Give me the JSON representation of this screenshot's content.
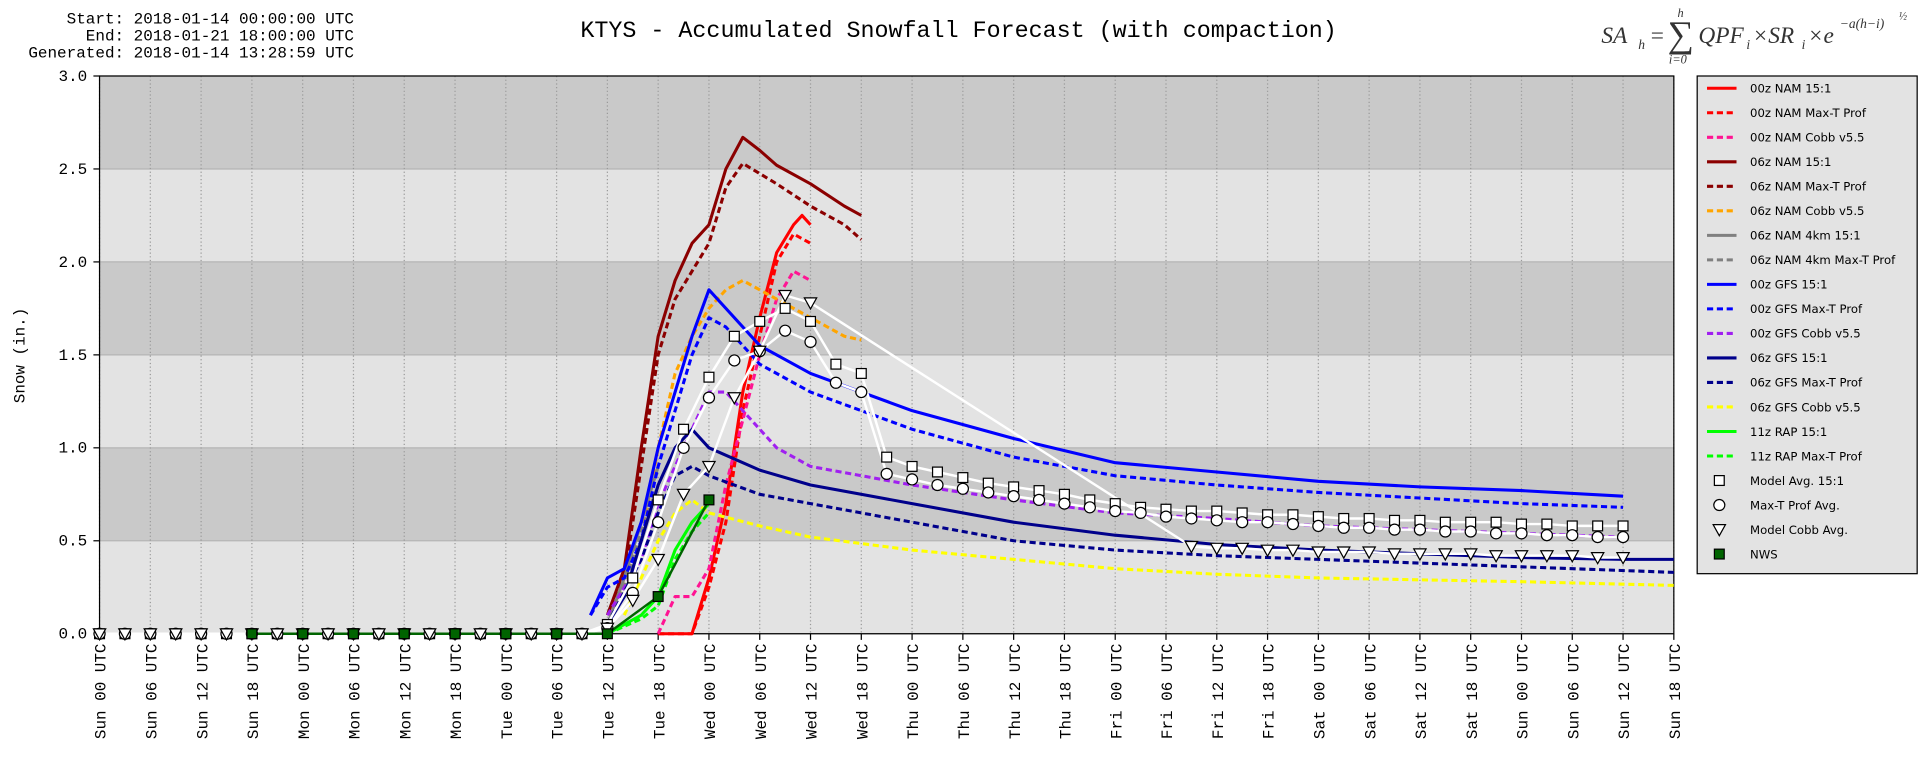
{
  "header": {
    "start": "Start: 2018-01-14 00:00:00 UTC",
    "end": "End: 2018-01-21 18:00:00 UTC",
    "generated": "Generated: 2018-01-14 13:28:59 UTC"
  },
  "formula": {
    "lhs": "SA",
    "lhs_sub": "h",
    "eq": "=",
    "sum": "∑",
    "sum_top": "h",
    "sum_bottom": "i=0",
    "body": "QPF",
    "sub1": "i",
    "times_sr": "×SR",
    "sub2": "i",
    "times_e": "×e",
    "exponent": "−a(h−i)",
    "exp_power": "½"
  },
  "chart_data": {
    "type": "line",
    "title": "KTYS - Accumulated Snowfall Forecast (with compaction)",
    "y_label": "Snow (in.)",
    "xlim": [
      0,
      186
    ],
    "ylim": [
      0,
      3
    ],
    "grid": true,
    "legend": "right",
    "yticks": [
      {
        "value": 0,
        "label": "0.0"
      },
      {
        "value": 0.5,
        "label": "0.5"
      },
      {
        "value": 1,
        "label": "1.0"
      },
      {
        "value": 1.5,
        "label": "1.5"
      },
      {
        "value": 2,
        "label": "2.0"
      },
      {
        "value": 2.5,
        "label": "2.5"
      },
      {
        "value": 3,
        "label": "3.0"
      }
    ],
    "xticks": [
      {
        "value": 0,
        "label": "Sun 00 UTC"
      },
      {
        "value": 6,
        "label": "Sun 06 UTC"
      },
      {
        "value": 12,
        "label": "Sun 12 UTC"
      },
      {
        "value": 18,
        "label": "Sun 18 UTC"
      },
      {
        "value": 24,
        "label": "Mon 00 UTC"
      },
      {
        "value": 30,
        "label": "Mon 06 UTC"
      },
      {
        "value": 36,
        "label": "Mon 12 UTC"
      },
      {
        "value": 42,
        "label": "Mon 18 UTC"
      },
      {
        "value": 48,
        "label": "Tue 00 UTC"
      },
      {
        "value": 54,
        "label": "Tue 06 UTC"
      },
      {
        "value": 60,
        "label": "Tue 12 UTC"
      },
      {
        "value": 66,
        "label": "Tue 18 UTC"
      },
      {
        "value": 72,
        "label": "Wed 00 UTC"
      },
      {
        "value": 78,
        "label": "Wed 06 UTC"
      },
      {
        "value": 84,
        "label": "Wed 12 UTC"
      },
      {
        "value": 90,
        "label": "Wed 18 UTC"
      },
      {
        "value": 96,
        "label": "Thu 00 UTC"
      },
      {
        "value": 102,
        "label": "Thu 06 UTC"
      },
      {
        "value": 108,
        "label": "Thu 12 UTC"
      },
      {
        "value": 114,
        "label": "Thu 18 UTC"
      },
      {
        "value": 120,
        "label": "Fri 00 UTC"
      },
      {
        "value": 126,
        "label": "Fri 06 UTC"
      },
      {
        "value": 132,
        "label": "Fri 12 UTC"
      },
      {
        "value": 138,
        "label": "Fri 18 UTC"
      },
      {
        "value": 144,
        "label": "Sat 00 UTC"
      },
      {
        "value": 150,
        "label": "Sat 06 UTC"
      },
      {
        "value": 156,
        "label": "Sat 12 UTC"
      },
      {
        "value": 162,
        "label": "Sat 18 UTC"
      },
      {
        "value": 168,
        "label": "Sun 00 UTC"
      },
      {
        "value": 174,
        "label": "Sun 06 UTC"
      },
      {
        "value": 180,
        "label": "Sun 12 UTC"
      },
      {
        "value": 186,
        "label": "Sun 18 UTC"
      }
    ],
    "series": [
      {
        "name": "00z NAM 15:1",
        "color": "#ff0000",
        "dash": false,
        "x": [
          66,
          70,
          72,
          74,
          76,
          78,
          80,
          82,
          83,
          84
        ],
        "values": [
          0,
          0,
          0.3,
          0.7,
          1.3,
          1.7,
          2.05,
          2.2,
          2.25,
          2.2
        ]
      },
      {
        "name": "00z NAM Max-T Prof",
        "color": "#ff0000",
        "dash": true,
        "x": [
          66,
          70,
          72,
          74,
          76,
          78,
          80,
          82,
          84
        ],
        "values": [
          0,
          0,
          0.25,
          0.6,
          1.2,
          1.6,
          2.0,
          2.15,
          2.1
        ]
      },
      {
        "name": "00z NAM Cobb v5.5",
        "color": "#ff1493",
        "dash": true,
        "x": [
          66,
          68,
          70,
          72,
          74,
          76,
          78,
          80,
          82,
          84
        ],
        "values": [
          0,
          0.2,
          0.2,
          0.35,
          0.8,
          1.15,
          1.5,
          1.8,
          1.95,
          1.9
        ]
      },
      {
        "name": "06z NAM 15:1",
        "color": "#8b0000",
        "dash": false,
        "x": [
          60,
          62,
          64,
          66,
          68,
          70,
          72,
          74,
          76,
          78,
          80,
          84,
          88,
          90
        ],
        "values": [
          0.1,
          0.35,
          1.0,
          1.6,
          1.9,
          2.1,
          2.2,
          2.5,
          2.67,
          2.6,
          2.52,
          2.42,
          2.3,
          2.25
        ]
      },
      {
        "name": "06z NAM Max-T Prof",
        "color": "#8b0000",
        "dash": true,
        "x": [
          60,
          62,
          64,
          66,
          68,
          70,
          72,
          74,
          76,
          80,
          84,
          88,
          90
        ],
        "values": [
          0.1,
          0.3,
          0.9,
          1.5,
          1.8,
          1.95,
          2.1,
          2.4,
          2.53,
          2.42,
          2.3,
          2.2,
          2.12
        ]
      },
      {
        "name": "06z NAM Cobb v5.5",
        "color": "#ffa500",
        "dash": true,
        "x": [
          60,
          64,
          66,
          68,
          70,
          72,
          74,
          76,
          78,
          80,
          84,
          88,
          90
        ],
        "values": [
          0.05,
          0.5,
          1.0,
          1.4,
          1.6,
          1.75,
          1.85,
          1.9,
          1.85,
          1.8,
          1.7,
          1.6,
          1.58
        ]
      },
      {
        "name": "06z NAM 4km 15:1",
        "color": "#808080",
        "dash": false,
        "x": [
          60,
          62,
          64,
          66
        ],
        "values": [
          0.05,
          0.3,
          0.6,
          0.9
        ]
      },
      {
        "name": "06z NAM 4km Max-T Prof",
        "color": "#808080",
        "dash": true,
        "x": [
          60,
          62,
          64,
          66
        ],
        "values": [
          0.05,
          0.25,
          0.55,
          0.8
        ]
      },
      {
        "name": "00z GFS 15:1",
        "color": "#0000ff",
        "dash": false,
        "x": [
          58,
          60,
          62,
          64,
          66,
          68,
          70,
          72,
          74,
          78,
          84,
          90,
          96,
          108,
          120,
          132,
          144,
          156,
          168,
          180
        ],
        "values": [
          0.1,
          0.3,
          0.35,
          0.6,
          1.0,
          1.3,
          1.6,
          1.85,
          1.75,
          1.55,
          1.4,
          1.3,
          1.2,
          1.05,
          0.92,
          0.87,
          0.82,
          0.79,
          0.77,
          0.74
        ]
      },
      {
        "name": "00z GFS Max-T Prof",
        "color": "#0000ff",
        "dash": true,
        "x": [
          58,
          60,
          62,
          64,
          66,
          68,
          70,
          72,
          74,
          78,
          84,
          90,
          96,
          108,
          120,
          132,
          144,
          156,
          168,
          180
        ],
        "values": [
          0.1,
          0.25,
          0.3,
          0.5,
          0.9,
          1.2,
          1.5,
          1.7,
          1.65,
          1.45,
          1.3,
          1.2,
          1.1,
          0.95,
          0.85,
          0.8,
          0.76,
          0.73,
          0.7,
          0.68
        ]
      },
      {
        "name": "00z GFS Cobb v5.5",
        "color": "#a020f0",
        "dash": true,
        "x": [
          60,
          64,
          66,
          68,
          70,
          72,
          74,
          76,
          80,
          84,
          96,
          108,
          120,
          132,
          144,
          156,
          168,
          180
        ],
        "values": [
          0.1,
          0.4,
          0.7,
          0.9,
          1.1,
          1.3,
          1.3,
          1.2,
          1.0,
          0.9,
          0.8,
          0.72,
          0.65,
          0.62,
          0.58,
          0.56,
          0.54,
          0.52
        ]
      },
      {
        "name": "06z GFS 15:1",
        "color": "#00008b",
        "dash": false,
        "x": [
          60,
          62,
          64,
          66,
          68,
          70,
          72,
          78,
          84,
          96,
          108,
          120,
          132,
          144,
          156,
          168,
          180,
          186
        ],
        "values": [
          0.05,
          0.2,
          0.5,
          0.8,
          1.0,
          1.1,
          1.0,
          0.88,
          0.8,
          0.7,
          0.6,
          0.53,
          0.48,
          0.45,
          0.43,
          0.41,
          0.4,
          0.4
        ]
      },
      {
        "name": "06z GFS Max-T Prof",
        "color": "#00008b",
        "dash": true,
        "x": [
          60,
          64,
          66,
          68,
          70,
          72,
          78,
          84,
          96,
          108,
          120,
          132,
          144,
          156,
          168,
          186
        ],
        "values": [
          0.05,
          0.4,
          0.65,
          0.85,
          0.9,
          0.85,
          0.75,
          0.7,
          0.6,
          0.5,
          0.45,
          0.42,
          0.4,
          0.38,
          0.36,
          0.33
        ]
      },
      {
        "name": "06z GFS Cobb v5.5",
        "color": "#ffff00",
        "dash": true,
        "x": [
          62,
          64,
          66,
          68,
          70,
          72,
          78,
          84,
          96,
          108,
          120,
          132,
          144,
          156,
          168,
          186
        ],
        "values": [
          0.1,
          0.3,
          0.5,
          0.65,
          0.72,
          0.65,
          0.58,
          0.52,
          0.45,
          0.4,
          0.35,
          0.32,
          0.3,
          0.29,
          0.28,
          0.26
        ]
      },
      {
        "name": "11z RAP 15:1",
        "color": "#00ff00",
        "dash": false,
        "x": [
          60,
          62,
          64,
          66,
          68,
          70,
          72
        ],
        "values": [
          0,
          0.05,
          0.1,
          0.2,
          0.45,
          0.6,
          0.7
        ]
      },
      {
        "name": "11z RAP Max-T Prof",
        "color": "#00ff00",
        "dash": true,
        "x": [
          60,
          64,
          66,
          68,
          70,
          72
        ],
        "values": [
          0,
          0.08,
          0.15,
          0.4,
          0.55,
          0.65
        ]
      },
      {
        "name": "Model Avg. 15:1",
        "color": "#ffffff",
        "dash": false,
        "marker": "square",
        "x": [
          0,
          3,
          6,
          9,
          12,
          15,
          18,
          21,
          24,
          27,
          30,
          33,
          36,
          39,
          42,
          45,
          48,
          51,
          54,
          57,
          60,
          63,
          66,
          69,
          72,
          75,
          78,
          81,
          84,
          87,
          90,
          93,
          96,
          99,
          102,
          105,
          108,
          111,
          114,
          117,
          120,
          123,
          126,
          129,
          132,
          135,
          138,
          141,
          144,
          147,
          150,
          153,
          156,
          159,
          162,
          165,
          168,
          171,
          174,
          177,
          180
        ],
        "values": [
          0,
          0,
          0,
          0,
          0,
          0,
          0,
          0,
          0,
          0,
          0,
          0,
          0,
          0,
          0,
          0,
          0,
          0,
          0,
          0,
          0.05,
          0.3,
          0.72,
          1.1,
          1.38,
          1.6,
          1.68,
          1.75,
          1.68,
          1.45,
          1.4,
          0.95,
          0.9,
          0.87,
          0.84,
          0.81,
          0.79,
          0.77,
          0.75,
          0.72,
          0.7,
          0.68,
          0.67,
          0.66,
          0.66,
          0.65,
          0.64,
          0.64,
          0.63,
          0.62,
          0.62,
          0.61,
          0.61,
          0.6,
          0.6,
          0.6,
          0.59,
          0.59,
          0.58,
          0.58,
          0.58
        ]
      },
      {
        "name": "Max-T Prof Avg.",
        "color": "#ffffff",
        "dash": false,
        "marker": "circle",
        "x": [
          0,
          3,
          6,
          9,
          12,
          15,
          18,
          21,
          24,
          27,
          30,
          33,
          36,
          39,
          42,
          45,
          48,
          51,
          54,
          57,
          60,
          63,
          66,
          69,
          72,
          75,
          78,
          81,
          84,
          87,
          90,
          93,
          96,
          99,
          102,
          105,
          108,
          111,
          114,
          117,
          120,
          123,
          126,
          129,
          132,
          135,
          138,
          141,
          144,
          147,
          150,
          153,
          156,
          159,
          162,
          165,
          168,
          171,
          174,
          177,
          180
        ],
        "values": [
          0,
          0,
          0,
          0,
          0,
          0,
          0,
          0,
          0,
          0,
          0,
          0,
          0,
          0,
          0,
          0,
          0,
          0,
          0,
          0,
          0.03,
          0.22,
          0.6,
          1.0,
          1.27,
          1.47,
          1.52,
          1.63,
          1.57,
          1.35,
          1.3,
          0.86,
          0.83,
          0.8,
          0.78,
          0.76,
          0.74,
          0.72,
          0.7,
          0.68,
          0.66,
          0.65,
          0.63,
          0.62,
          0.61,
          0.6,
          0.6,
          0.59,
          0.58,
          0.57,
          0.57,
          0.56,
          0.56,
          0.55,
          0.55,
          0.54,
          0.54,
          0.53,
          0.53,
          0.52,
          0.52
        ]
      },
      {
        "name": "Model Cobb Avg.",
        "color": "#ffffff",
        "dash": false,
        "marker": "triangle",
        "x": [
          0,
          3,
          6,
          9,
          12,
          15,
          18,
          21,
          24,
          27,
          30,
          33,
          36,
          39,
          42,
          45,
          48,
          51,
          54,
          57,
          60,
          63,
          66,
          69,
          72,
          75,
          78,
          81,
          84,
          129,
          132,
          135,
          138,
          141,
          144,
          147,
          150,
          153,
          156,
          159,
          162,
          165,
          168,
          171,
          174,
          177,
          180
        ],
        "values": [
          0,
          0,
          0,
          0,
          0,
          0,
          0,
          0,
          0,
          0,
          0,
          0,
          0,
          0,
          0,
          0,
          0,
          0,
          0,
          0,
          0.03,
          0.18,
          0.4,
          0.75,
          0.9,
          1.27,
          1.52,
          1.82,
          1.78,
          0.47,
          0.46,
          0.46,
          0.45,
          0.45,
          0.44,
          0.44,
          0.44,
          0.43,
          0.43,
          0.43,
          0.43,
          0.42,
          0.42,
          0.42,
          0.42,
          0.41,
          0.41
        ]
      },
      {
        "name": "NWS",
        "color": "#006400",
        "dash": false,
        "marker": "filled-square",
        "x": [
          18,
          24,
          30,
          36,
          42,
          48,
          54,
          60,
          66,
          72
        ],
        "values": [
          0,
          0,
          0,
          0,
          0,
          0,
          0,
          0,
          0.2,
          0.72
        ]
      }
    ]
  }
}
